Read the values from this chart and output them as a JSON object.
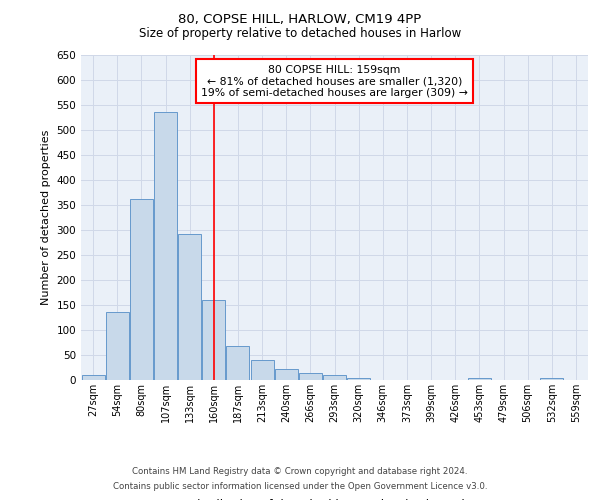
{
  "title1": "80, COPSE HILL, HARLOW, CM19 4PP",
  "title2": "Size of property relative to detached houses in Harlow",
  "xlabel": "Distribution of detached houses by size in Harlow",
  "ylabel": "Number of detached properties",
  "categories": [
    "27sqm",
    "54sqm",
    "80sqm",
    "107sqm",
    "133sqm",
    "160sqm",
    "187sqm",
    "213sqm",
    "240sqm",
    "266sqm",
    "293sqm",
    "320sqm",
    "346sqm",
    "373sqm",
    "399sqm",
    "426sqm",
    "453sqm",
    "479sqm",
    "506sqm",
    "532sqm",
    "559sqm"
  ],
  "values": [
    10,
    137,
    362,
    537,
    293,
    160,
    68,
    40,
    22,
    15,
    10,
    5,
    0,
    0,
    0,
    0,
    5,
    0,
    0,
    5,
    0
  ],
  "bar_color": "#c8d9ea",
  "bar_edge_color": "#6699cc",
  "annotation_text": "80 COPSE HILL: 159sqm\n← 81% of detached houses are smaller (1,320)\n19% of semi-detached houses are larger (309) →",
  "annotation_box_color": "white",
  "annotation_box_edge_color": "red",
  "vline_color": "red",
  "vline_x": 5,
  "ylim": [
    0,
    650
  ],
  "yticks": [
    0,
    50,
    100,
    150,
    200,
    250,
    300,
    350,
    400,
    450,
    500,
    550,
    600,
    650
  ],
  "footer1": "Contains HM Land Registry data © Crown copyright and database right 2024.",
  "footer2": "Contains public sector information licensed under the Open Government Licence v3.0.",
  "grid_color": "#d0d8e8",
  "bg_color": "#eaf0f8"
}
